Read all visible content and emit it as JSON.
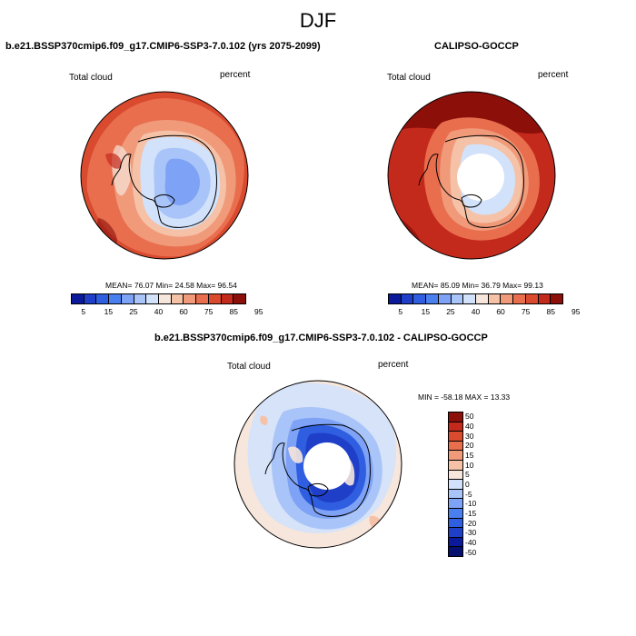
{
  "page_title": "DJF",
  "panels": {
    "model": {
      "title": "b.e21.BSSP370cmip6.f09_g17.CMIP6-SSP3-7.0.102 (yrs 2075-2099)",
      "variable": "Total cloud",
      "units": "percent",
      "stats": "MEAN=  76.07  Min=  24.58  Max=  96.54"
    },
    "obs": {
      "title": "CALIPSO-GOCCP",
      "variable": "Total cloud",
      "units": "percent",
      "stats": "MEAN=  85.09  Min=  36.79  Max=  99.13"
    },
    "diff": {
      "title": "b.e21.BSSP370cmip6.f09_g17.CMIP6-SSP3-7.0.102 - CALIPSO-GOCCP",
      "variable": "Total cloud",
      "units": "percent",
      "stats": "MIN = -58.18 MAX =  13.33"
    }
  },
  "colorbar_main": {
    "colors": [
      "#0a1a9a",
      "#1f3fc8",
      "#2f5fe0",
      "#4a7ff0",
      "#7ea2f5",
      "#a9c4f8",
      "#d2e2fb",
      "#f7e6dc",
      "#f5c2a8",
      "#f09a7a",
      "#e86e4e",
      "#d94a2e",
      "#c42a1c",
      "#8c0f0a"
    ],
    "labels": [
      "5",
      "15",
      "25",
      "40",
      "60",
      "75",
      "85",
      "95"
    ]
  },
  "colorbar_diff": {
    "colors": [
      "#8c0f0a",
      "#c42a1c",
      "#d94a2e",
      "#e86e4e",
      "#f09a7a",
      "#f5c2a8",
      "#f7e6dc",
      "#d2e2fb",
      "#a9c4f8",
      "#7ea2f5",
      "#4a7ff0",
      "#2f5fe0",
      "#1f3fc8",
      "#0a1a9a",
      "#06106e"
    ],
    "labels": [
      "50",
      "40",
      "30",
      "20",
      "15",
      "10",
      "5",
      "0",
      "-5",
      "-10",
      "-15",
      "-20",
      "-30",
      "-40",
      "-50"
    ]
  }
}
